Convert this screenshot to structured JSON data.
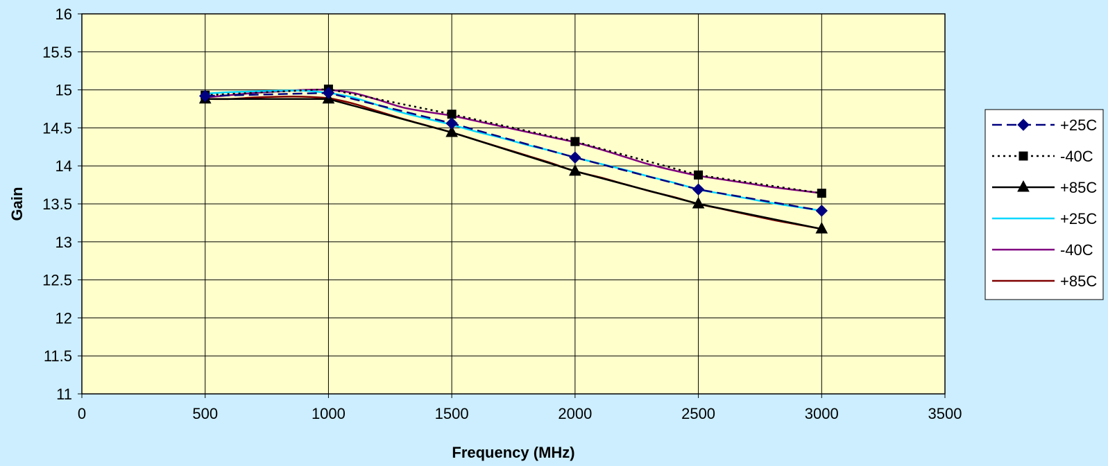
{
  "chart_data": {
    "type": "line",
    "title": "",
    "xlabel": "Frequency (MHz)",
    "ylabel": "Gain",
    "xlim": [
      0,
      3500
    ],
    "ylim": [
      11,
      16
    ],
    "x_ticks": [
      0,
      500,
      1000,
      1500,
      2000,
      2500,
      3000,
      3500
    ],
    "y_ticks": [
      11,
      11.5,
      12,
      12.5,
      13,
      13.5,
      14,
      14.5,
      15,
      15.5,
      16
    ],
    "grid": true,
    "legend_position": "right",
    "plot_background": "#ffffcc",
    "page_background": "#cceeff",
    "series": [
      {
        "name": "+25C",
        "color": "#000080",
        "marker": "diamond",
        "line_style": "dashed",
        "smooth": false,
        "x": [
          500,
          1000,
          1500,
          2000,
          2500,
          3000
        ],
        "y": [
          14.92,
          14.96,
          14.56,
          14.11,
          13.69,
          13.41
        ]
      },
      {
        "name": "-40C",
        "color": "#000000",
        "marker": "square",
        "line_style": "dotted",
        "smooth": false,
        "x": [
          500,
          1000,
          1500,
          2000,
          2500,
          3000
        ],
        "y": [
          14.93,
          15.01,
          14.68,
          14.32,
          13.88,
          13.64
        ]
      },
      {
        "name": "+85C",
        "color": "#000000",
        "marker": "triangle",
        "line_style": "solid",
        "smooth": false,
        "x": [
          500,
          1000,
          1500,
          2000,
          2500,
          3000
        ],
        "y": [
          14.88,
          14.88,
          14.44,
          13.93,
          13.5,
          13.17
        ]
      },
      {
        "name": "+25C",
        "color": "#00d8ff",
        "marker": "none",
        "line_style": "solid",
        "smooth": true,
        "x": [
          500,
          600,
          700,
          800,
          900,
          1000,
          1100,
          1200,
          1300,
          1400,
          1500,
          1600,
          1700,
          1800,
          1900,
          2000,
          2100,
          2200,
          2300,
          2400,
          2500,
          2600,
          2700,
          2800,
          2900,
          3000
        ],
        "y": [
          14.95,
          14.97,
          14.98,
          14.99,
          14.99,
          14.96,
          14.9,
          14.8,
          14.7,
          14.62,
          14.54,
          14.45,
          14.37,
          14.28,
          14.2,
          14.11,
          14.03,
          13.95,
          13.86,
          13.78,
          13.69,
          13.63,
          13.57,
          13.51,
          13.46,
          13.41
        ]
      },
      {
        "name": "-40C",
        "color": "#800080",
        "marker": "none",
        "line_style": "solid",
        "smooth": true,
        "x": [
          500,
          600,
          700,
          800,
          900,
          1000,
          1100,
          1200,
          1300,
          1400,
          1500,
          1600,
          1700,
          1800,
          1900,
          2000,
          2100,
          2200,
          2300,
          2400,
          2500,
          2600,
          2700,
          2800,
          2900,
          3000
        ],
        "y": [
          14.9,
          14.93,
          14.96,
          14.98,
          15.0,
          15.0,
          14.96,
          14.87,
          14.77,
          14.71,
          14.66,
          14.59,
          14.52,
          14.45,
          14.38,
          14.31,
          14.22,
          14.12,
          14.02,
          13.94,
          13.87,
          13.82,
          13.77,
          13.72,
          13.68,
          13.64
        ]
      },
      {
        "name": "+85C",
        "color": "#800000",
        "marker": "none",
        "line_style": "solid",
        "smooth": true,
        "x": [
          500,
          600,
          700,
          800,
          900,
          1000,
          1100,
          1200,
          1300,
          1400,
          1500,
          1600,
          1700,
          1800,
          1900,
          2000,
          2100,
          2200,
          2300,
          2400,
          2500,
          2600,
          2700,
          2800,
          2900,
          3000
        ],
        "y": [
          14.88,
          14.88,
          14.9,
          14.91,
          14.91,
          14.89,
          14.82,
          14.72,
          14.62,
          14.53,
          14.44,
          14.34,
          14.24,
          14.14,
          14.04,
          13.93,
          13.85,
          13.76,
          13.67,
          13.59,
          13.5,
          13.43,
          13.36,
          13.29,
          13.23,
          13.17
        ]
      }
    ]
  }
}
